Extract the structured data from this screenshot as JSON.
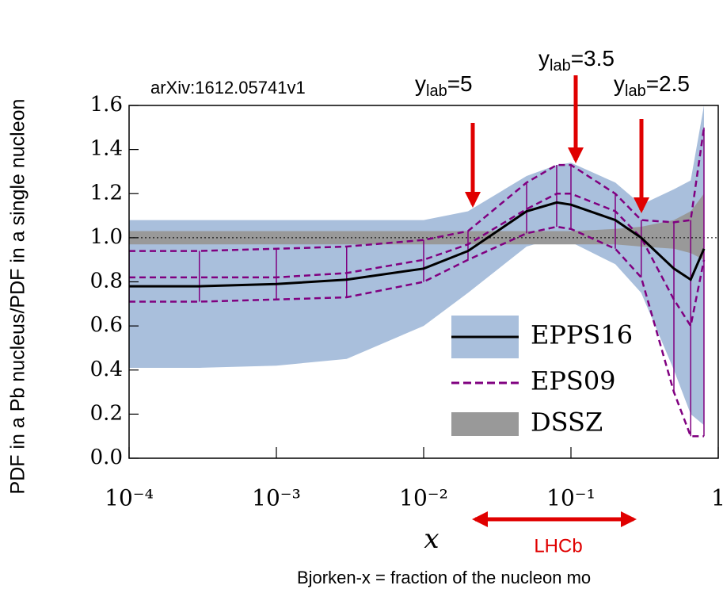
{
  "chart_data": {
    "type": "line",
    "y_label": "PDF in a Pb nucleus/PDF in a single nucleon",
    "x_label": "x",
    "xscale": "log",
    "x": [
      0.0001,
      0.0003,
      0.001,
      0.003,
      0.01,
      0.02,
      0.05,
      0.08,
      0.1,
      0.2,
      0.3,
      0.5,
      0.65,
      0.8
    ],
    "xlim": [
      0.0001,
      1
    ],
    "ylim": [
      0,
      1.6
    ],
    "xticks": [
      {
        "value": 0.0001,
        "label": "10⁻⁴"
      },
      {
        "value": 0.001,
        "label": "10⁻³"
      },
      {
        "value": 0.01,
        "label": "10⁻²"
      },
      {
        "value": 0.1,
        "label": "10⁻¹"
      },
      1
    ],
    "yticks": [
      {
        "value": 0,
        "label": "0.0"
      },
      0.2,
      0.4,
      0.6,
      0.8,
      {
        "value": 1,
        "label": "1.0"
      },
      1.2,
      1.4,
      1.6
    ],
    "legend": "lower right",
    "series": [
      {
        "name": "EPPS16",
        "color": "#000000",
        "band_color": "#a9bfdc",
        "values": [
          0.78,
          0.78,
          0.79,
          0.81,
          0.86,
          0.94,
          1.12,
          1.16,
          1.15,
          1.08,
          1.0,
          0.86,
          0.81,
          0.95
        ],
        "lower": [
          0.41,
          0.41,
          0.42,
          0.45,
          0.6,
          0.75,
          0.96,
          1.0,
          0.98,
          0.88,
          0.75,
          0.4,
          0.2,
          0.15
        ],
        "upper": [
          1.08,
          1.08,
          1.08,
          1.08,
          1.08,
          1.12,
          1.28,
          1.33,
          1.34,
          1.25,
          1.15,
          1.22,
          1.26,
          1.6
        ]
      },
      {
        "name": "EPS09",
        "color": "#800080",
        "dashed": true,
        "values": [
          0.82,
          0.82,
          0.82,
          0.84,
          0.9,
          0.97,
          1.13,
          1.2,
          1.2,
          1.12,
          1.0,
          0.72,
          0.6,
          0.9
        ],
        "lower": [
          0.71,
          0.71,
          0.72,
          0.73,
          0.8,
          0.9,
          1.02,
          1.05,
          1.04,
          0.95,
          0.82,
          0.3,
          0.1,
          0.1
        ],
        "upper": [
          0.94,
          0.94,
          0.95,
          0.96,
          0.99,
          1.03,
          1.25,
          1.33,
          1.33,
          1.2,
          1.08,
          1.07,
          1.08,
          1.5
        ]
      },
      {
        "name": "DSSZ",
        "color": "#999999",
        "lower": [
          0.97,
          0.97,
          0.97,
          0.97,
          0.97,
          0.97,
          0.97,
          0.97,
          0.97,
          0.97,
          0.96,
          0.95,
          0.93,
          0.9
        ],
        "upper": [
          1.03,
          1.03,
          1.03,
          1.03,
          1.03,
          1.03,
          1.03,
          1.03,
          1.03,
          1.04,
          1.05,
          1.08,
          1.12,
          1.2
        ]
      }
    ],
    "annotations": [
      {
        "text": "arXiv:1612.05741v1"
      },
      {
        "base": "y",
        "sub": "lab",
        "rest": "=5"
      },
      {
        "base": "y",
        "sub": "lab",
        "rest": "=3.5"
      },
      {
        "base": "y",
        "sub": "lab",
        "rest": "=2.5"
      },
      {
        "text": "LHCb"
      },
      {
        "text": "Bjorken-x = fraction of the nucleon mo"
      }
    ]
  }
}
